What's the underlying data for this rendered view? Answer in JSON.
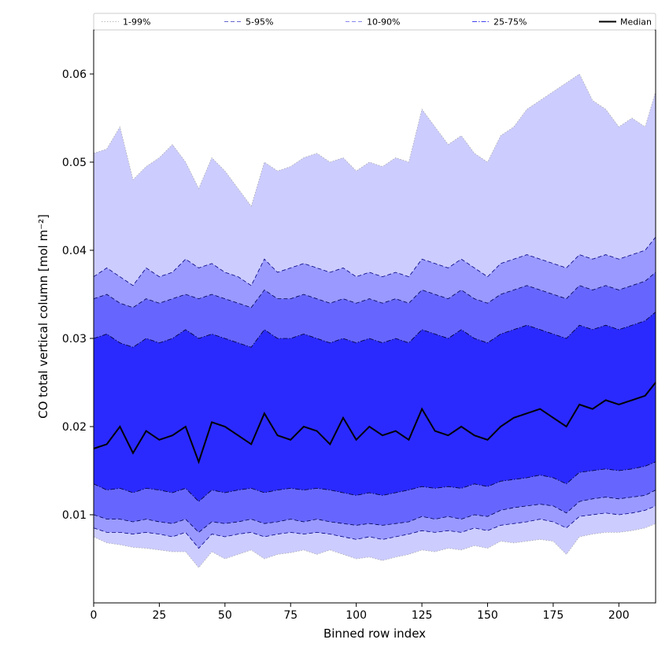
{
  "chart_data": {
    "type": "area",
    "xlabel": "Binned row index",
    "ylabel": "CO total vertical column [mol m⁻²]",
    "xlim": [
      0,
      214
    ],
    "ylim": [
      0.0,
      0.065
    ],
    "xticks": [
      0,
      25,
      50,
      75,
      100,
      125,
      150,
      175,
      200
    ],
    "yticks": [
      0.01,
      0.02,
      0.03,
      0.04,
      0.05,
      0.06
    ],
    "grid": false,
    "legend_position": "top",
    "x": [
      0,
      5,
      10,
      15,
      20,
      25,
      30,
      35,
      40,
      45,
      50,
      55,
      60,
      65,
      70,
      75,
      80,
      85,
      90,
      95,
      100,
      105,
      110,
      115,
      120,
      125,
      130,
      135,
      140,
      145,
      150,
      155,
      160,
      165,
      170,
      175,
      180,
      185,
      190,
      195,
      200,
      205,
      210,
      214
    ],
    "bands": [
      {
        "name": "1-99%",
        "color": "#ccccff",
        "line_style": "dotted",
        "line_color": "#aaaaaa",
        "lower": [
          0.0075,
          0.0068,
          0.0066,
          0.0063,
          0.0062,
          0.006,
          0.0058,
          0.0058,
          0.004,
          0.0058,
          0.005,
          0.0055,
          0.006,
          0.005,
          0.0055,
          0.0057,
          0.006,
          0.0055,
          0.006,
          0.0055,
          0.005,
          0.0052,
          0.0048,
          0.0052,
          0.0055,
          0.006,
          0.0058,
          0.0062,
          0.006,
          0.0065,
          0.0062,
          0.007,
          0.0068,
          0.007,
          0.0072,
          0.007,
          0.0055,
          0.0075,
          0.0078,
          0.008,
          0.008,
          0.0082,
          0.0085,
          0.009
        ],
        "upper": [
          0.051,
          0.0515,
          0.054,
          0.048,
          0.0495,
          0.0505,
          0.052,
          0.05,
          0.047,
          0.0505,
          0.049,
          0.047,
          0.045,
          0.05,
          0.049,
          0.0495,
          0.0505,
          0.051,
          0.05,
          0.0505,
          0.049,
          0.05,
          0.0495,
          0.0505,
          0.05,
          0.056,
          0.054,
          0.052,
          0.053,
          0.051,
          0.05,
          0.053,
          0.054,
          0.056,
          0.057,
          0.058,
          0.059,
          0.06,
          0.057,
          0.056,
          0.054,
          0.055,
          0.054,
          0.058
        ]
      },
      {
        "name": "5-95%",
        "color": "#9999ff",
        "line_style": "dashed",
        "line_color": "#000080",
        "lower": [
          0.0085,
          0.008,
          0.008,
          0.0078,
          0.008,
          0.0078,
          0.0075,
          0.008,
          0.0062,
          0.0078,
          0.0075,
          0.0078,
          0.008,
          0.0075,
          0.0078,
          0.008,
          0.0078,
          0.008,
          0.0078,
          0.0075,
          0.0072,
          0.0075,
          0.0072,
          0.0075,
          0.0078,
          0.0082,
          0.008,
          0.0082,
          0.008,
          0.0085,
          0.0082,
          0.0088,
          0.009,
          0.0092,
          0.0095,
          0.0092,
          0.0085,
          0.0098,
          0.01,
          0.0102,
          0.01,
          0.0102,
          0.0105,
          0.011
        ],
        "upper": [
          0.037,
          0.038,
          0.037,
          0.036,
          0.038,
          0.037,
          0.0375,
          0.039,
          0.038,
          0.0385,
          0.0375,
          0.037,
          0.036,
          0.039,
          0.0375,
          0.038,
          0.0385,
          0.038,
          0.0375,
          0.038,
          0.037,
          0.0375,
          0.037,
          0.0375,
          0.037,
          0.039,
          0.0385,
          0.038,
          0.039,
          0.038,
          0.037,
          0.0385,
          0.039,
          0.0395,
          0.039,
          0.0385,
          0.038,
          0.0395,
          0.039,
          0.0395,
          0.039,
          0.0395,
          0.04,
          0.0415
        ]
      },
      {
        "name": "10-90%",
        "color": "#6666ff",
        "line_style": "dashed",
        "line_color": "#000050",
        "lower": [
          0.01,
          0.0095,
          0.0095,
          0.0092,
          0.0095,
          0.0092,
          0.009,
          0.0095,
          0.008,
          0.0092,
          0.009,
          0.0092,
          0.0095,
          0.009,
          0.0092,
          0.0095,
          0.0092,
          0.0095,
          0.0092,
          0.009,
          0.0088,
          0.009,
          0.0088,
          0.009,
          0.0092,
          0.0098,
          0.0095,
          0.0098,
          0.0095,
          0.01,
          0.0098,
          0.0105,
          0.0108,
          0.011,
          0.0112,
          0.011,
          0.0102,
          0.0115,
          0.0118,
          0.012,
          0.0118,
          0.012,
          0.0122,
          0.0128
        ],
        "upper": [
          0.0345,
          0.035,
          0.034,
          0.0335,
          0.0345,
          0.034,
          0.0345,
          0.035,
          0.0345,
          0.035,
          0.0345,
          0.034,
          0.0335,
          0.0355,
          0.0345,
          0.0345,
          0.035,
          0.0345,
          0.034,
          0.0345,
          0.034,
          0.0345,
          0.034,
          0.0345,
          0.034,
          0.0355,
          0.035,
          0.0345,
          0.0355,
          0.0345,
          0.034,
          0.035,
          0.0355,
          0.036,
          0.0355,
          0.035,
          0.0345,
          0.036,
          0.0355,
          0.036,
          0.0355,
          0.036,
          0.0365,
          0.0375
        ]
      },
      {
        "name": "25-75%",
        "color": "#2a2aff",
        "line_style": "dashdot",
        "line_color": "#000030",
        "lower": [
          0.0135,
          0.0128,
          0.013,
          0.0125,
          0.013,
          0.0128,
          0.0125,
          0.013,
          0.0115,
          0.0128,
          0.0125,
          0.0128,
          0.013,
          0.0125,
          0.0128,
          0.013,
          0.0128,
          0.013,
          0.0128,
          0.0125,
          0.0122,
          0.0125,
          0.0122,
          0.0125,
          0.0128,
          0.0132,
          0.013,
          0.0132,
          0.013,
          0.0135,
          0.0132,
          0.0138,
          0.014,
          0.0142,
          0.0145,
          0.0142,
          0.0135,
          0.0148,
          0.015,
          0.0152,
          0.015,
          0.0152,
          0.0155,
          0.016
        ],
        "upper": [
          0.03,
          0.0305,
          0.0295,
          0.029,
          0.03,
          0.0295,
          0.03,
          0.031,
          0.03,
          0.0305,
          0.03,
          0.0295,
          0.029,
          0.031,
          0.03,
          0.03,
          0.0305,
          0.03,
          0.0295,
          0.03,
          0.0295,
          0.03,
          0.0295,
          0.03,
          0.0295,
          0.031,
          0.0305,
          0.03,
          0.031,
          0.03,
          0.0295,
          0.0305,
          0.031,
          0.0315,
          0.031,
          0.0305,
          0.03,
          0.0315,
          0.031,
          0.0315,
          0.031,
          0.0315,
          0.032,
          0.033
        ]
      }
    ],
    "series": [
      {
        "name": "Median",
        "color": "#000000",
        "line_style": "solid",
        "values": [
          0.0175,
          0.018,
          0.02,
          0.017,
          0.0195,
          0.0185,
          0.019,
          0.02,
          0.016,
          0.0205,
          0.02,
          0.019,
          0.018,
          0.0215,
          0.019,
          0.0185,
          0.02,
          0.0195,
          0.018,
          0.021,
          0.0185,
          0.02,
          0.019,
          0.0195,
          0.0185,
          0.022,
          0.0195,
          0.019,
          0.02,
          0.019,
          0.0185,
          0.02,
          0.021,
          0.0215,
          0.022,
          0.021,
          0.02,
          0.0225,
          0.022,
          0.023,
          0.0225,
          0.023,
          0.0235,
          0.025
        ]
      }
    ]
  }
}
